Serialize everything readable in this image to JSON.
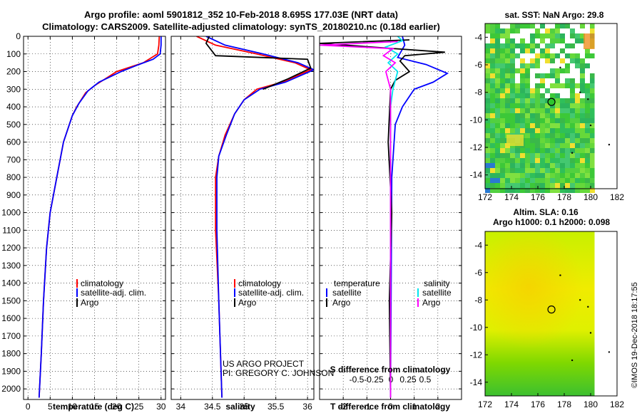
{
  "header": {
    "line1": "Argo profile: aoml 5901812_352 10-Feb-2018 8.695S 177.03E (NRT data)",
    "line2": "Climatology: CARS2009. Satellite-adjusted climatology: synTS_20180210.nc (0.18d earlier)"
  },
  "credit": {
    "line1": "US ARGO PROJECT",
    "line2": "PI: GREGORY C. JOHNSON",
    "stamp": "©IMOS 19-Dec-2018 18:17:55"
  },
  "colors": {
    "climatology": "#ff0000",
    "satellite_adj": "#0000ff",
    "argo": "#000000",
    "satellite": "#00e5ee",
    "salinity_argo": "#ff00ff"
  },
  "chart_data": [
    {
      "type": "line",
      "id": "temperature",
      "xlabel": "temperature (deg C)",
      "ylabel": "",
      "xlim": [
        -1,
        31
      ],
      "ylim": [
        2060,
        0
      ],
      "xticks": [
        0,
        5,
        10,
        15,
        20,
        25,
        30
      ],
      "yticks": [
        0,
        100,
        200,
        300,
        400,
        500,
        600,
        700,
        800,
        900,
        1000,
        1100,
        1200,
        1300,
        1400,
        1500,
        1600,
        1700,
        1800,
        1900,
        2000
      ],
      "legend": [
        "climatology",
        "satellite-adj. clim.",
        "Argo"
      ],
      "series": [
        {
          "name": "climatology",
          "color": "#ff0000",
          "points": [
            [
              29.6,
              0
            ],
            [
              29.5,
              50
            ],
            [
              29.2,
              100
            ],
            [
              26,
              150
            ],
            [
              20,
              200
            ],
            [
              15,
              280
            ],
            [
              13,
              320
            ],
            [
              11,
              400
            ],
            [
              10,
              450
            ],
            [
              8,
              600
            ],
            [
              6.5,
              800
            ],
            [
              5,
              1000
            ],
            [
              4.2,
              1200
            ],
            [
              3.5,
              1500
            ],
            [
              3,
              1800
            ],
            [
              2.5,
              2050
            ]
          ]
        },
        {
          "name": "satellite-adj. clim.",
          "color": "#0000ff",
          "points": [
            [
              30,
              0
            ],
            [
              30,
              50
            ],
            [
              29.8,
              100
            ],
            [
              28.2,
              130
            ],
            [
              25,
              160
            ],
            [
              21,
              200
            ],
            [
              16,
              260
            ],
            [
              13.5,
              310
            ],
            [
              11.5,
              380
            ],
            [
              10,
              450
            ],
            [
              8,
              600
            ],
            [
              6.5,
              800
            ],
            [
              5,
              1000
            ],
            [
              4.2,
              1200
            ],
            [
              3.5,
              1500
            ],
            [
              3,
              1800
            ],
            [
              2.5,
              2050
            ]
          ]
        },
        {
          "name": "Argo",
          "color": "#000000",
          "points": []
        }
      ]
    },
    {
      "type": "line",
      "id": "salinity",
      "xlabel": "salinity",
      "xlim": [
        33.85,
        36.1
      ],
      "ylim": [
        2060,
        0
      ],
      "xticks": [
        34,
        34.5,
        35,
        35.5,
        36
      ],
      "legend": [
        "climatology",
        "satellite-adj. clim.",
        "Argo"
      ],
      "series": [
        {
          "name": "climatology",
          "color": "#ff0000",
          "points": [
            [
              34.25,
              0
            ],
            [
              34.55,
              50
            ],
            [
              35.2,
              100
            ],
            [
              35.8,
              150
            ],
            [
              36.05,
              190
            ],
            [
              35.6,
              260
            ],
            [
              35.2,
              300
            ],
            [
              35,
              360
            ],
            [
              34.85,
              440
            ],
            [
              34.7,
              560
            ],
            [
              34.6,
              680
            ],
            [
              34.55,
              800
            ],
            [
              34.55,
              1100
            ],
            [
              34.6,
              1500
            ],
            [
              34.65,
              2050
            ]
          ]
        },
        {
          "name": "satellite-adj. clim.",
          "color": "#0000ff",
          "points": [
            [
              34.4,
              0
            ],
            [
              34.7,
              50
            ],
            [
              35.3,
              100
            ],
            [
              35.85,
              150
            ],
            [
              36.1,
              190
            ],
            [
              35.65,
              260
            ],
            [
              35.25,
              300
            ],
            [
              35,
              360
            ],
            [
              34.85,
              440
            ],
            [
              34.72,
              560
            ],
            [
              34.6,
              680
            ],
            [
              34.57,
              800
            ],
            [
              34.57,
              1100
            ],
            [
              34.6,
              1500
            ],
            [
              34.65,
              2050
            ]
          ]
        },
        {
          "name": "Argo",
          "color": "#000000",
          "points": [
            [
              34.45,
              0
            ],
            [
              34.4,
              40
            ],
            [
              34.55,
              110
            ],
            [
              36,
              130
            ],
            [
              36.05,
              180
            ],
            [
              35.7,
              240
            ],
            [
              35.3,
              300
            ]
          ]
        }
      ]
    },
    {
      "type": "line",
      "id": "difference",
      "xlabel": "T difference from climatology",
      "xlabel_top": "S difference from climatology",
      "xlim": [
        -3,
        3
      ],
      "ylim": [
        2060,
        0
      ],
      "xticks": [
        -2,
        -1,
        0,
        1,
        2
      ],
      "xticks_top": [
        -0.5,
        -0.25,
        0,
        0.25,
        0.5
      ],
      "legend_left_title": "temperature",
      "legend_left": [
        "satellite",
        "Argo"
      ],
      "legend_right_title": "salinity",
      "legend_right": [
        "satellite",
        "Argo"
      ],
      "series": [
        {
          "name": "temperature satellite",
          "color": "#0000ff",
          "points": [
            [
              0.5,
              0
            ],
            [
              0.6,
              50
            ],
            [
              0.3,
              120
            ],
            [
              1.5,
              160
            ],
            [
              2.4,
              210
            ],
            [
              1.8,
              260
            ],
            [
              1,
              300
            ],
            [
              0.5,
              400
            ],
            [
              0.2,
              500
            ],
            [
              0.05,
              800
            ],
            [
              0,
              2050
            ]
          ]
        },
        {
          "name": "temperature Argo",
          "color": "#000000",
          "points": [
            [
              0.8,
              20
            ],
            [
              -3,
              40
            ],
            [
              2.3,
              90
            ],
            [
              0.6,
              110
            ],
            [
              0.4,
              140
            ],
            [
              0.8,
              200
            ],
            [
              0.2,
              250
            ],
            [
              0,
              300
            ],
            [
              -0.1,
              600
            ],
            [
              0.05,
              1000
            ],
            [
              -0.05,
              1500
            ],
            [
              0,
              2050
            ]
          ]
        },
        {
          "name": "salinity satellite",
          "color": "#00e5ee",
          "points": [
            [
              0.3,
              0
            ],
            [
              0.5,
              25
            ],
            [
              -0.2,
              60
            ],
            [
              0.3,
              100
            ],
            [
              -0.1,
              150
            ],
            [
              0.3,
              200
            ],
            [
              0.1,
              300
            ],
            [
              0,
              400
            ],
            [
              0,
              2050
            ]
          ]
        },
        {
          "name": "salinity Argo",
          "color": "#ff00ff",
          "points": [
            [
              0.3,
              30
            ],
            [
              -3,
              50
            ],
            [
              0.1,
              70
            ],
            [
              -0.3,
              110
            ],
            [
              0.2,
              150
            ],
            [
              -0.2,
              200
            ],
            [
              0,
              300
            ],
            [
              0,
              2050
            ]
          ]
        }
      ]
    },
    {
      "type": "heatmap",
      "id": "sst-map",
      "title": "sat. SST: NaN Argo: 29.8",
      "xlim": [
        172,
        182
      ],
      "ylim": [
        -15,
        -3
      ],
      "xticks": [
        172,
        174,
        176,
        178,
        180,
        182
      ],
      "yticks": [
        -4,
        -6,
        -8,
        -10,
        -12,
        -14
      ],
      "marker": [
        177.03,
        -8.695
      ]
    },
    {
      "type": "heatmap",
      "id": "sla-map",
      "title": "Altim. SLA: 0.16",
      "subtitle": "Argo h1000: 0.1 h2000: 0.098",
      "xlim": [
        172,
        182
      ],
      "ylim": [
        -15,
        -3
      ],
      "xticks": [
        172,
        174,
        176,
        178,
        180,
        182
      ],
      "yticks": [
        -4,
        -6,
        -8,
        -10,
        -12,
        -14
      ],
      "marker": [
        177.03,
        -8.695
      ]
    }
  ]
}
